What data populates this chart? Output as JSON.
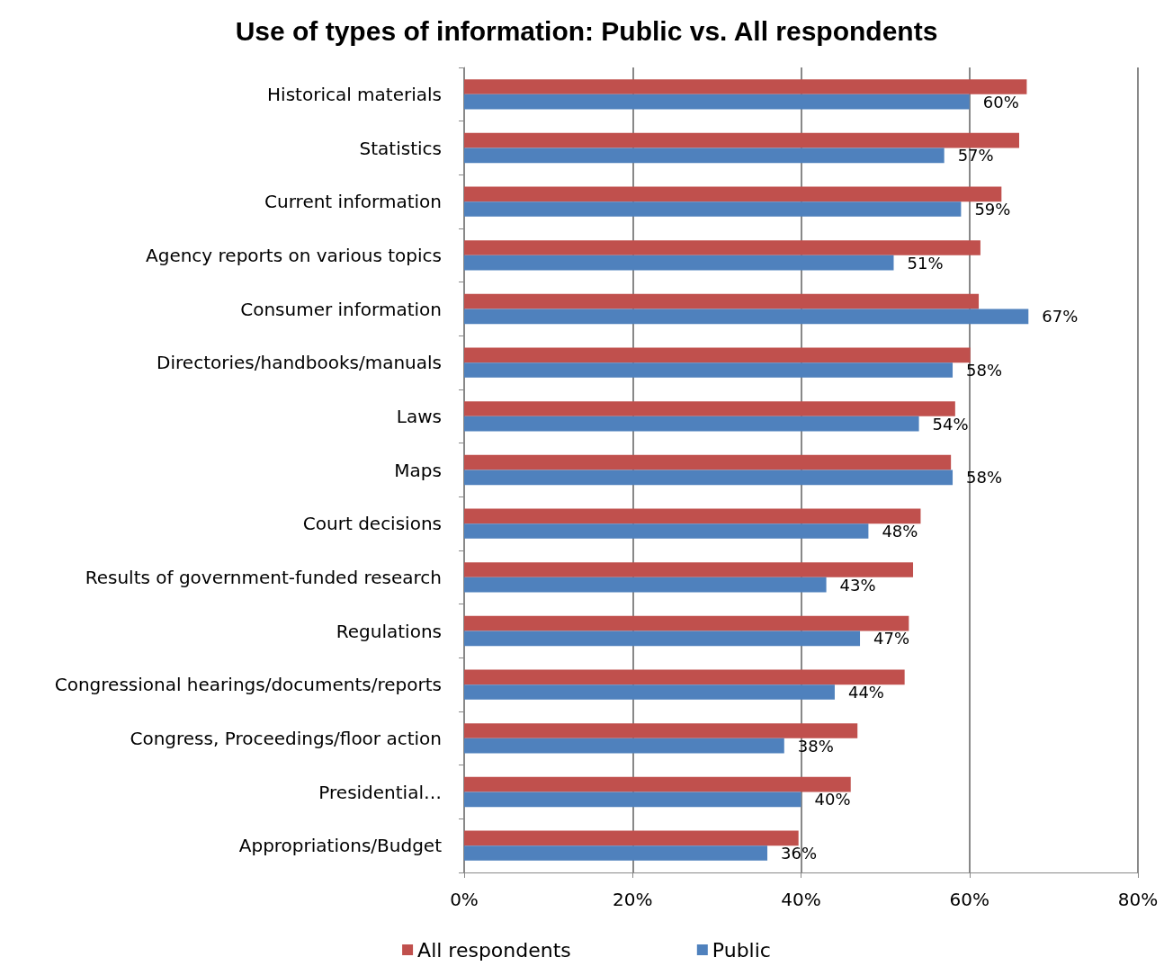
{
  "chart_data": {
    "type": "bar",
    "orientation": "horizontal",
    "title": "Use of types of information: Public vs. All respondents",
    "categories": [
      "Historical materials",
      "Statistics",
      "Current information",
      "Agency reports on various topics",
      "Consumer information",
      "Directories/handbooks/manuals",
      "Laws",
      "Maps",
      "Court decisions",
      "Results of government-funded research",
      "Regulations",
      "Congressional hearings/documents/reports",
      "Congress, Proceedings/floor action",
      "Presidential…",
      "Appropriations/Budget"
    ],
    "series": [
      {
        "name": "All respondents",
        "color": "#c0504d",
        "values": [
          66.8,
          65.9,
          63.8,
          61.3,
          61.1,
          60.1,
          58.3,
          57.8,
          54.2,
          53.3,
          52.8,
          52.3,
          46.7,
          45.9,
          39.7
        ]
      },
      {
        "name": "Public",
        "color": "#4f81bd",
        "values": [
          60,
          57,
          59,
          51,
          67,
          58,
          54,
          58,
          48,
          43,
          47,
          44,
          38,
          40,
          36
        ],
        "value_labels": [
          "60%",
          "57%",
          "59%",
          "51%",
          "67%",
          "58%",
          "54%",
          "58%",
          "48%",
          "43%",
          "47%",
          "44%",
          "38%",
          "40%",
          "36%"
        ]
      }
    ],
    "xlim": [
      0,
      80
    ],
    "xticks": [
      {
        "value": 0,
        "label": "0%"
      },
      {
        "value": 20,
        "label": "20%"
      },
      {
        "value": 40,
        "label": "40%"
      },
      {
        "value": 60,
        "label": "60%"
      },
      {
        "value": 80,
        "label": "80%"
      }
    ],
    "grid": "x",
    "legend": "bottom"
  }
}
